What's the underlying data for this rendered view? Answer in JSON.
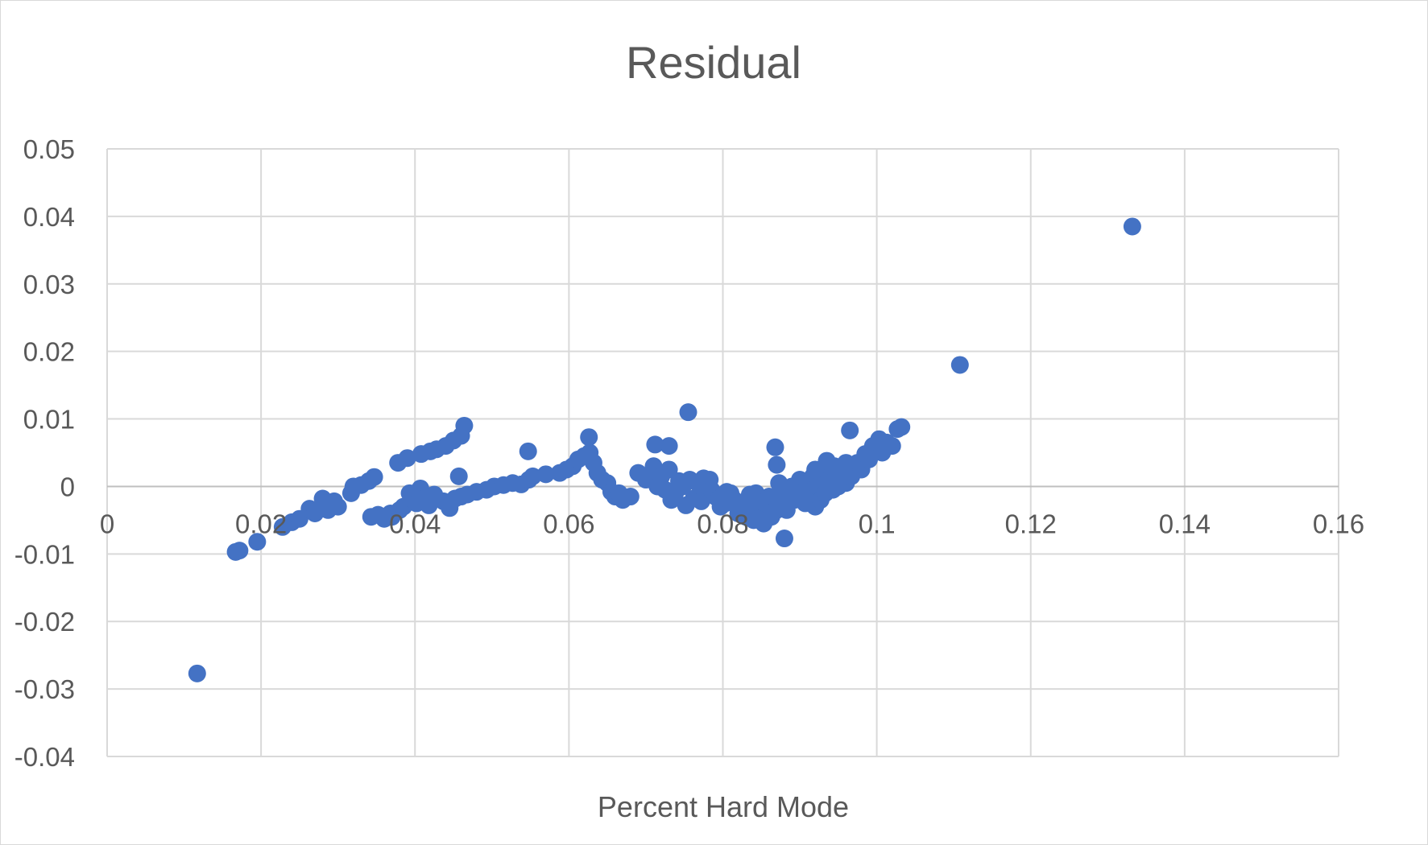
{
  "chart_data": {
    "type": "scatter",
    "title": "Residual",
    "xlabel": "Percent Hard Mode",
    "ylabel": "",
    "xlim": [
      0,
      0.16
    ],
    "ylim": [
      -0.04,
      0.05
    ],
    "x_ticks": [
      0,
      0.02,
      0.04,
      0.06,
      0.08,
      0.1,
      0.12,
      0.14,
      0.16
    ],
    "y_ticks": [
      -0.04,
      -0.03,
      -0.02,
      -0.01,
      0,
      0.01,
      0.02,
      0.03,
      0.04,
      0.05
    ],
    "x_tick_labels": [
      "0",
      "0.02",
      "0.04",
      "0.06",
      "0.08",
      "0.1",
      "0.12",
      "0.14",
      "0.16"
    ],
    "y_tick_labels": [
      "-0.04",
      "-0.03",
      "-0.02",
      "-0.01",
      "0",
      "0.01",
      "0.02",
      "0.03",
      "0.04",
      "0.05"
    ],
    "grid": true,
    "legend": "none",
    "marker_color": "#4472c4",
    "series": [
      {
        "x": [
          0.0117,
          0.0167,
          0.0172,
          0.0195,
          0.0228,
          0.024,
          0.025,
          0.0263,
          0.027,
          0.0287,
          0.0295,
          0.03,
          0.028,
          0.0317,
          0.032,
          0.033,
          0.034,
          0.0347,
          0.036,
          0.037,
          0.0378,
          0.039,
          0.0408,
          0.042,
          0.0428,
          0.044,
          0.045,
          0.046,
          0.0464,
          0.0343,
          0.0352,
          0.0368,
          0.038,
          0.0385,
          0.0393,
          0.0398,
          0.0402,
          0.0407,
          0.0412,
          0.0418,
          0.0425,
          0.0437,
          0.0445,
          0.0452,
          0.046,
          0.0468,
          0.048,
          0.0493,
          0.0503,
          0.0515,
          0.0527,
          0.0538,
          0.0548,
          0.0553,
          0.057,
          0.0588,
          0.0597,
          0.0605,
          0.0612,
          0.062,
          0.0627,
          0.0632,
          0.0637,
          0.0643,
          0.065,
          0.0655,
          0.066,
          0.0665,
          0.067,
          0.068,
          0.069,
          0.07,
          0.071,
          0.0715,
          0.072,
          0.0725,
          0.073,
          0.0733,
          0.0738,
          0.0743,
          0.0748,
          0.0752,
          0.0757,
          0.0762,
          0.0767,
          0.0772,
          0.0777,
          0.0783,
          0.079,
          0.0797,
          0.0803,
          0.081,
          0.0815,
          0.082,
          0.0825,
          0.083,
          0.0833,
          0.0837,
          0.084,
          0.0843,
          0.0847,
          0.085,
          0.0853,
          0.0857,
          0.086,
          0.0863,
          0.0867,
          0.087,
          0.0873,
          0.0877,
          0.088,
          0.0883,
          0.0887,
          0.089,
          0.0893,
          0.0897,
          0.09,
          0.0903,
          0.0907,
          0.091,
          0.0913,
          0.0917,
          0.092,
          0.0923,
          0.0927,
          0.093,
          0.0933,
          0.0937,
          0.094,
          0.0943,
          0.0947,
          0.095,
          0.0953,
          0.0957,
          0.096,
          0.0963,
          0.0967,
          0.097,
          0.0975,
          0.098,
          0.0985,
          0.099,
          0.0995,
          0.1,
          0.1007,
          0.1013,
          0.102,
          0.1027,
          0.1032,
          0.0965,
          0.0868,
          0.088,
          0.0755,
          0.0547,
          0.0457,
          0.1108,
          0.1332,
          0.073,
          0.0712,
          0.0626,
          0.087,
          0.092,
          0.0935,
          0.0945,
          0.0955,
          0.096,
          0.0985,
          0.1003,
          0.0775,
          0.0785,
          0.0795,
          0.0805,
          0.0815,
          0.0825,
          0.0835,
          0.0845,
          0.0855,
          0.0865
        ],
        "y": [
          -0.0277,
          -0.0097,
          -0.0095,
          -0.0082,
          -0.006,
          -0.0053,
          -0.0048,
          -0.0033,
          -0.004,
          -0.0035,
          -0.0022,
          -0.003,
          -0.0018,
          -0.001,
          0.0,
          0.0002,
          0.0008,
          0.0014,
          -0.0048,
          -0.0045,
          0.0035,
          0.0042,
          0.0048,
          0.0052,
          0.0055,
          0.006,
          0.0068,
          0.0075,
          0.009,
          -0.0045,
          -0.0042,
          -0.004,
          -0.0035,
          -0.003,
          -0.001,
          -0.002,
          -0.0025,
          -0.0003,
          -0.0018,
          -0.0028,
          -0.0012,
          -0.0022,
          -0.0032,
          -0.0018,
          -0.0015,
          -0.0012,
          -0.0008,
          -0.0005,
          0.0,
          0.0002,
          0.0005,
          0.0003,
          0.001,
          0.0015,
          0.0018,
          0.002,
          0.0025,
          0.003,
          0.004,
          0.0045,
          0.005,
          0.0035,
          0.002,
          0.001,
          0.0005,
          -0.0008,
          -0.0015,
          -0.001,
          -0.002,
          -0.0015,
          0.002,
          0.001,
          0.003,
          0.0,
          0.0015,
          -0.0005,
          0.0025,
          -0.002,
          -0.001,
          0.0008,
          0.0,
          -0.0028,
          0.001,
          -0.0018,
          0.0005,
          -0.0022,
          -0.0008,
          0.001,
          -0.0015,
          -0.003,
          -0.0025,
          -0.001,
          -0.002,
          -0.004,
          -0.003,
          -0.0045,
          -0.0035,
          -0.002,
          -0.005,
          -0.001,
          -0.004,
          -0.0025,
          -0.0055,
          -0.003,
          -0.0015,
          -0.0045,
          -0.002,
          -0.0035,
          0.0005,
          -0.0025,
          -0.001,
          -0.0035,
          -0.0015,
          0.0,
          -0.002,
          -0.0005,
          0.001,
          -0.001,
          -0.0025,
          0.0005,
          -0.0015,
          0.0015,
          -0.003,
          0.0,
          -0.002,
          0.002,
          -0.001,
          0.001,
          0.003,
          -0.0005,
          0.0015,
          0.0,
          0.0025,
          0.001,
          0.0005,
          0.0018,
          0.0015,
          0.003,
          0.0035,
          0.0025,
          0.0045,
          0.004,
          0.006,
          0.0055,
          0.005,
          0.0065,
          0.006,
          0.0085,
          0.0088,
          0.0083,
          0.0058,
          -0.0077,
          0.011,
          0.0052,
          0.0015,
          0.018,
          0.0385,
          0.006,
          0.0062,
          0.0073,
          0.0032,
          0.0025,
          0.0038,
          0.003,
          0.0022,
          0.0035,
          0.0048,
          0.007,
          0.0012,
          -0.0005,
          -0.0018,
          -0.0008,
          -0.0025,
          -0.0035,
          -0.0012,
          -0.0048,
          -0.0022,
          -0.0038
        ]
      }
    ]
  }
}
